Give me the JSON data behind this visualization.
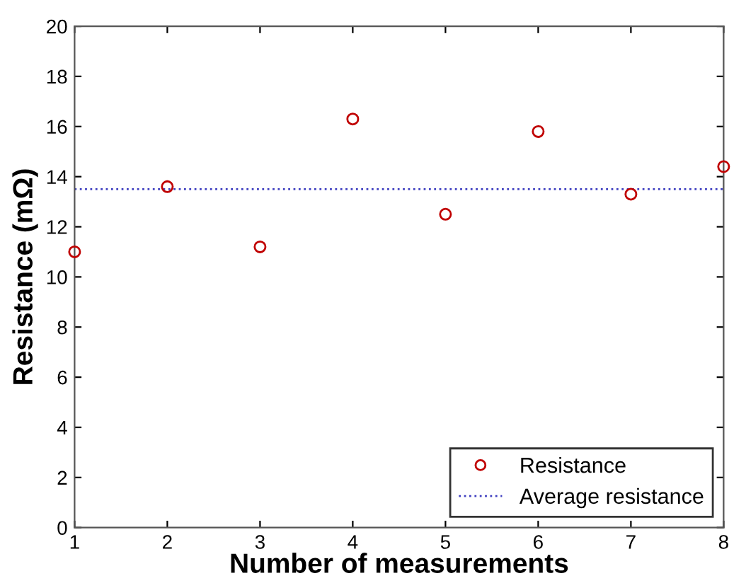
{
  "chart_data": {
    "type": "scatter",
    "xlabel": "Number of measurements",
    "ylabel": "Resistance (mΩ)",
    "x": [
      1,
      2,
      3,
      4,
      5,
      6,
      7,
      8
    ],
    "series": [
      {
        "name": "Resistance",
        "color": "#c00000",
        "values": [
          11.0,
          13.6,
          11.2,
          16.3,
          12.5,
          15.8,
          13.3,
          14.4
        ]
      }
    ],
    "ref_lines": [
      {
        "axis": "y",
        "value": 13.5,
        "label": "Average resistance",
        "color": "#4040c0",
        "line_style": "dotted"
      }
    ],
    "xlim": [
      1,
      8
    ],
    "xticks": [
      1,
      2,
      3,
      4,
      5,
      6,
      7,
      8
    ],
    "ylim": [
      0,
      20
    ],
    "yticks": [
      0,
      2,
      4,
      6,
      8,
      10,
      12,
      14,
      16,
      18,
      20
    ],
    "marker": "circle",
    "grid": false,
    "legend": "bottom right"
  }
}
